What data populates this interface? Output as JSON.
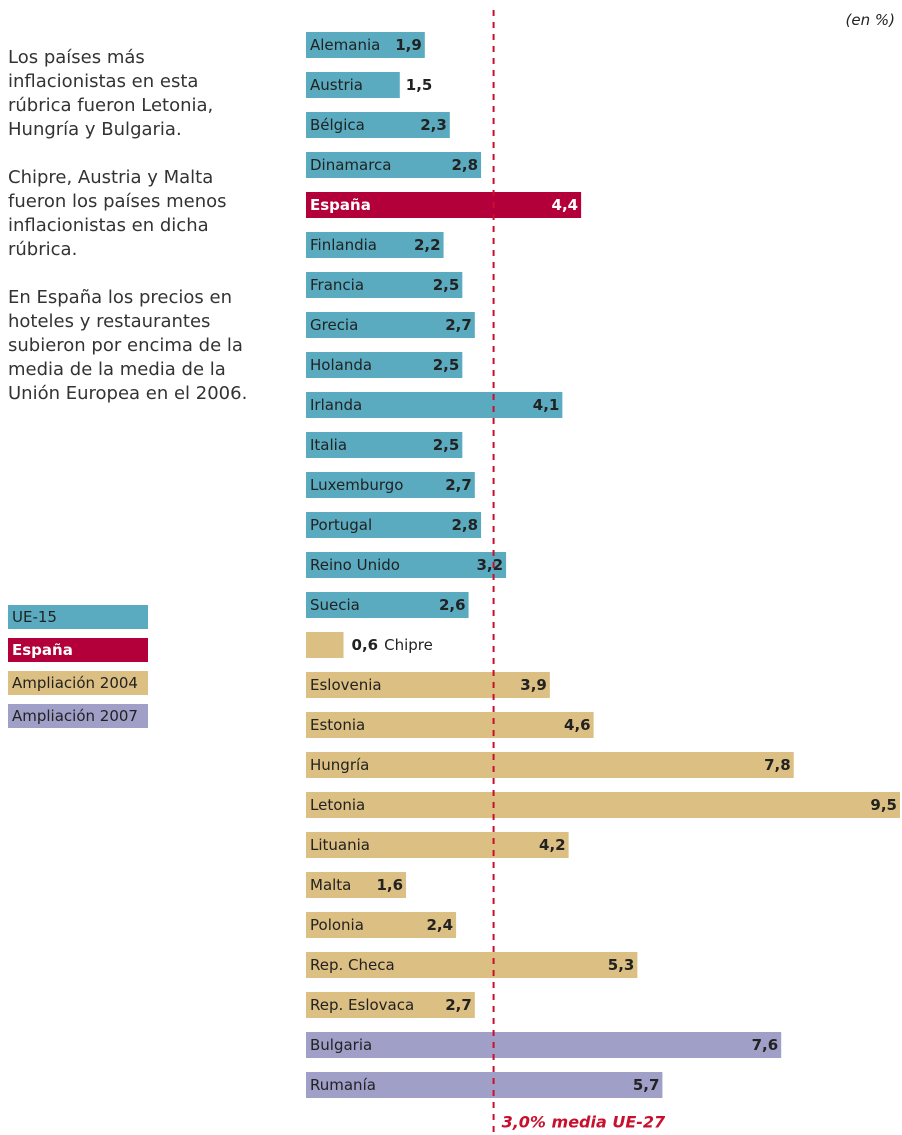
{
  "chart_data": {
    "type": "bar",
    "orientation": "horizontal",
    "unit_note": "(en %)",
    "notes": [
      "Los países más inflacionistas en esta rúbrica fueron Letonia, Hungría y Bulgaria.",
      "Chipre, Austria y Malta fueron los países menos inflacionistas en dicha rúbrica.",
      "En España los precios en hoteles y restaurantes subieron por encima de la media de la media de la Unión Europea en el 2006."
    ],
    "categories": [
      "Alemania",
      "Austria",
      "Bélgica",
      "Dinamarca",
      "España",
      "Finlandia",
      "Francia",
      "Grecia",
      "Holanda",
      "Irlanda",
      "Italia",
      "Luxemburgo",
      "Portugal",
      "Reino Unido",
      "Suecia",
      "Chipre",
      "Eslovenia",
      "Estonia",
      "Hungría",
      "Letonia",
      "Lituania",
      "Malta",
      "Polonia",
      "Rep. Checa",
      "Rep. Eslovaca",
      "Bulgaria",
      "Rumanía"
    ],
    "series": [
      {
        "name": "UE-15",
        "color": "#5aabc0",
        "values": [
          1.9,
          1.5,
          2.3,
          2.8,
          null,
          2.2,
          2.5,
          2.7,
          2.5,
          4.1,
          2.5,
          2.7,
          2.8,
          3.2,
          2.6,
          null,
          null,
          null,
          null,
          null,
          null,
          null,
          null,
          null,
          null,
          null,
          null
        ],
        "value_labels": [
          "1,9",
          "1,5",
          "2,3",
          "2,8",
          null,
          "2,2",
          "2,5",
          "2,7",
          "2,5",
          "4,1",
          "2,5",
          "2,7",
          "2,8",
          "3,2",
          "2,6",
          null,
          null,
          null,
          null,
          null,
          null,
          null,
          null,
          null,
          null,
          null,
          null
        ]
      },
      {
        "name": "España",
        "color": "#b3003b",
        "text_color": "#ffffff",
        "bold": true,
        "values": [
          null,
          null,
          null,
          null,
          4.4,
          null,
          null,
          null,
          null,
          null,
          null,
          null,
          null,
          null,
          null,
          null,
          null,
          null,
          null,
          null,
          null,
          null,
          null,
          null,
          null,
          null,
          null
        ],
        "value_labels": [
          null,
          null,
          null,
          null,
          "4,4",
          null,
          null,
          null,
          null,
          null,
          null,
          null,
          null,
          null,
          null,
          null,
          null,
          null,
          null,
          null,
          null,
          null,
          null,
          null,
          null,
          null,
          null
        ]
      },
      {
        "name": "Ampliación 2004",
        "color": "#dcbf82",
        "values": [
          null,
          null,
          null,
          null,
          null,
          null,
          null,
          null,
          null,
          null,
          null,
          null,
          null,
          null,
          null,
          0.6,
          3.9,
          4.6,
          7.8,
          9.5,
          4.2,
          1.6,
          2.4,
          5.3,
          2.7,
          null,
          null
        ],
        "value_labels": [
          null,
          null,
          null,
          null,
          null,
          null,
          null,
          null,
          null,
          null,
          null,
          null,
          null,
          null,
          null,
          "0,6",
          "3,9",
          "4,6",
          "7,8",
          "9,5",
          "4,2",
          "1,6",
          "2,4",
          "5,3",
          "2,7",
          null,
          null
        ]
      },
      {
        "name": "Ampliación 2007",
        "color": "#a09fc8",
        "values": [
          null,
          null,
          null,
          null,
          null,
          null,
          null,
          null,
          null,
          null,
          null,
          null,
          null,
          null,
          null,
          null,
          null,
          null,
          null,
          null,
          null,
          null,
          null,
          null,
          null,
          7.6,
          5.7
        ],
        "value_labels": [
          null,
          null,
          null,
          null,
          null,
          null,
          null,
          null,
          null,
          null,
          null,
          null,
          null,
          null,
          null,
          null,
          null,
          null,
          null,
          null,
          null,
          null,
          null,
          null,
          null,
          "7,6",
          "5,7"
        ]
      }
    ],
    "xlim": [
      0,
      9.5
    ],
    "reference_line": {
      "value": 3,
      "label": "3,0% media UE-27",
      "color": "#c8102e"
    }
  }
}
